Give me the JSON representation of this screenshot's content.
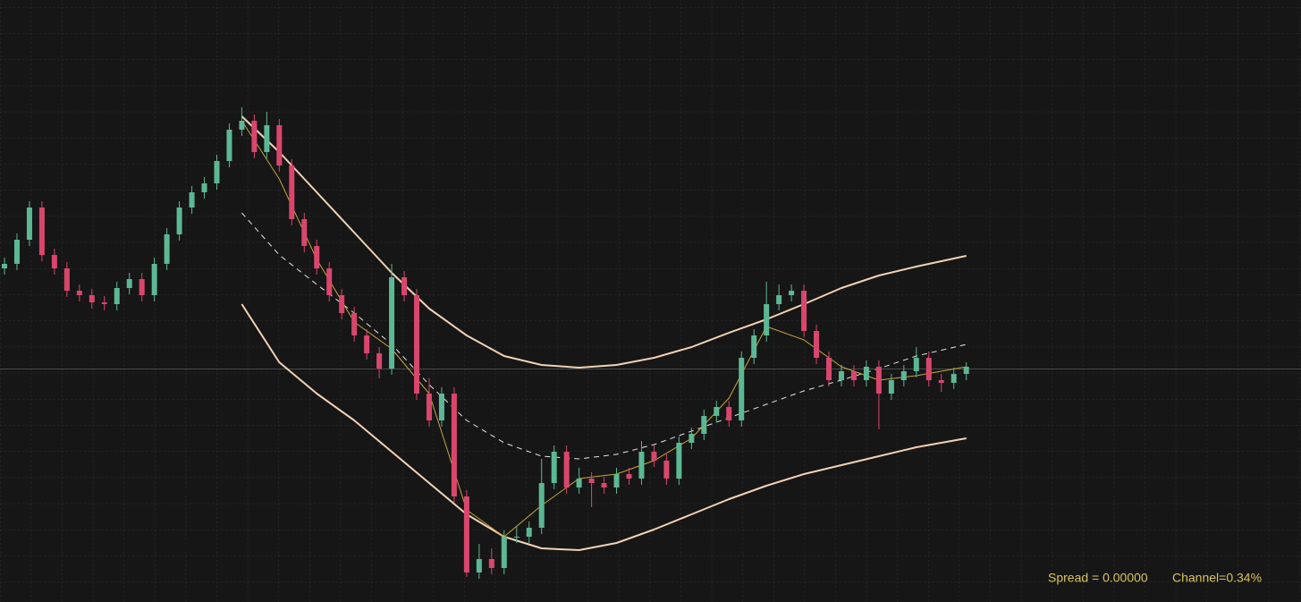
{
  "chart_data": {
    "type": "candlestick",
    "ylim": [
      0,
      673
    ],
    "up_color": "#5cb894",
    "down_color": "#d9466c",
    "open": [
      373,
      378,
      405,
      441,
      388,
      373,
      348,
      343,
      335,
      333,
      351,
      361,
      343,
      378,
      411,
      441,
      458,
      468,
      493,
      528,
      538,
      503,
      533,
      488,
      428,
      398,
      373,
      343,
      323,
      298,
      278,
      261,
      363,
      343,
      233,
      203,
      233,
      118,
      33,
      48,
      38,
      73,
      73,
      83,
      133,
      168,
      128,
      138,
      133,
      128,
      143,
      138,
      168,
      158,
      138,
      178,
      188,
      208,
      218,
      203,
      273,
      298,
      333,
      343,
      348,
      303,
      273,
      248,
      258,
      248,
      263,
      233,
      248,
      258,
      273,
      248,
      245,
      255
    ],
    "high": [
      385,
      412,
      448,
      448,
      395,
      380,
      355,
      350,
      342,
      358,
      368,
      368,
      385,
      418,
      448,
      465,
      475,
      500,
      535,
      553,
      545,
      548,
      540,
      495,
      435,
      405,
      380,
      350,
      330,
      305,
      285,
      378,
      370,
      350,
      250,
      240,
      240,
      125,
      65,
      60,
      80,
      85,
      90,
      160,
      175,
      175,
      150,
      145,
      140,
      150,
      150,
      180,
      175,
      165,
      185,
      195,
      215,
      225,
      225,
      280,
      305,
      358,
      355,
      355,
      355,
      310,
      280,
      265,
      265,
      270,
      270,
      255,
      265,
      285,
      280,
      255,
      262,
      268
    ],
    "low": [
      366,
      371,
      398,
      381,
      366,
      341,
      336,
      328,
      326,
      326,
      344,
      336,
      336,
      371,
      404,
      434,
      451,
      461,
      486,
      521,
      496,
      496,
      481,
      421,
      391,
      366,
      336,
      316,
      291,
      271,
      250,
      254,
      336,
      226,
      196,
      196,
      111,
      28,
      26,
      31,
      31,
      66,
      66,
      76,
      126,
      121,
      121,
      106,
      121,
      121,
      131,
      131,
      151,
      131,
      131,
      171,
      181,
      201,
      196,
      196,
      266,
      291,
      326,
      336,
      296,
      266,
      241,
      241,
      241,
      241,
      193,
      226,
      241,
      251,
      241,
      235,
      238,
      248
    ],
    "close": [
      378,
      405,
      441,
      388,
      373,
      348,
      343,
      335,
      333,
      351,
      361,
      343,
      378,
      411,
      441,
      458,
      468,
      493,
      528,
      538,
      503,
      533,
      488,
      428,
      398,
      373,
      343,
      323,
      298,
      278,
      261,
      363,
      343,
      233,
      203,
      233,
      118,
      33,
      48,
      38,
      73,
      73,
      83,
      133,
      168,
      128,
      138,
      133,
      128,
      143,
      138,
      168,
      158,
      138,
      178,
      188,
      208,
      218,
      203,
      273,
      298,
      333,
      343,
      348,
      303,
      273,
      248,
      258,
      248,
      263,
      233,
      248,
      258,
      273,
      248,
      245,
      255,
      263
    ],
    "channel": {
      "x": [
        19,
        22,
        25,
        28,
        31,
        34,
        37,
        40,
        43,
        46,
        49,
        52,
        55,
        58,
        61,
        64,
        67,
        70,
        73,
        77
      ],
      "series": [
        {
          "color": "#f3d2b4",
          "style": "solid",
          "values": [
            543,
            503,
            458,
            413,
            368,
            328,
            298,
            275,
            265,
            262,
            265,
            273,
            285,
            301,
            316,
            333,
            351,
            365,
            375,
            387
          ]
        },
        {
          "color": "#e6e6e6",
          "style": "dashed",
          "values": [
            435,
            388,
            355,
            323,
            288,
            243,
            203,
            178,
            163,
            160,
            165,
            176,
            191,
            206,
            221,
            236,
            248,
            261,
            275,
            288
          ]
        },
        {
          "color": "#f3d2b4",
          "style": "solid",
          "values": [
            333,
            268,
            233,
            203,
            168,
            133,
            98,
            73,
            60,
            58,
            66,
            81,
            98,
            115,
            130,
            143,
            153,
            163,
            173,
            183
          ]
        },
        {
          "color": "#c9a53a",
          "style": "thin",
          "values": [
            538,
            473,
            383,
            313,
            283,
            233,
            103,
            73,
            108,
            138,
            143,
            158,
            183,
            228,
            308,
            293,
            263,
            248,
            253,
            263
          ]
        }
      ]
    },
    "spread_label": "Spread = 0.00000",
    "channel_label": "Channel=0.34%"
  }
}
